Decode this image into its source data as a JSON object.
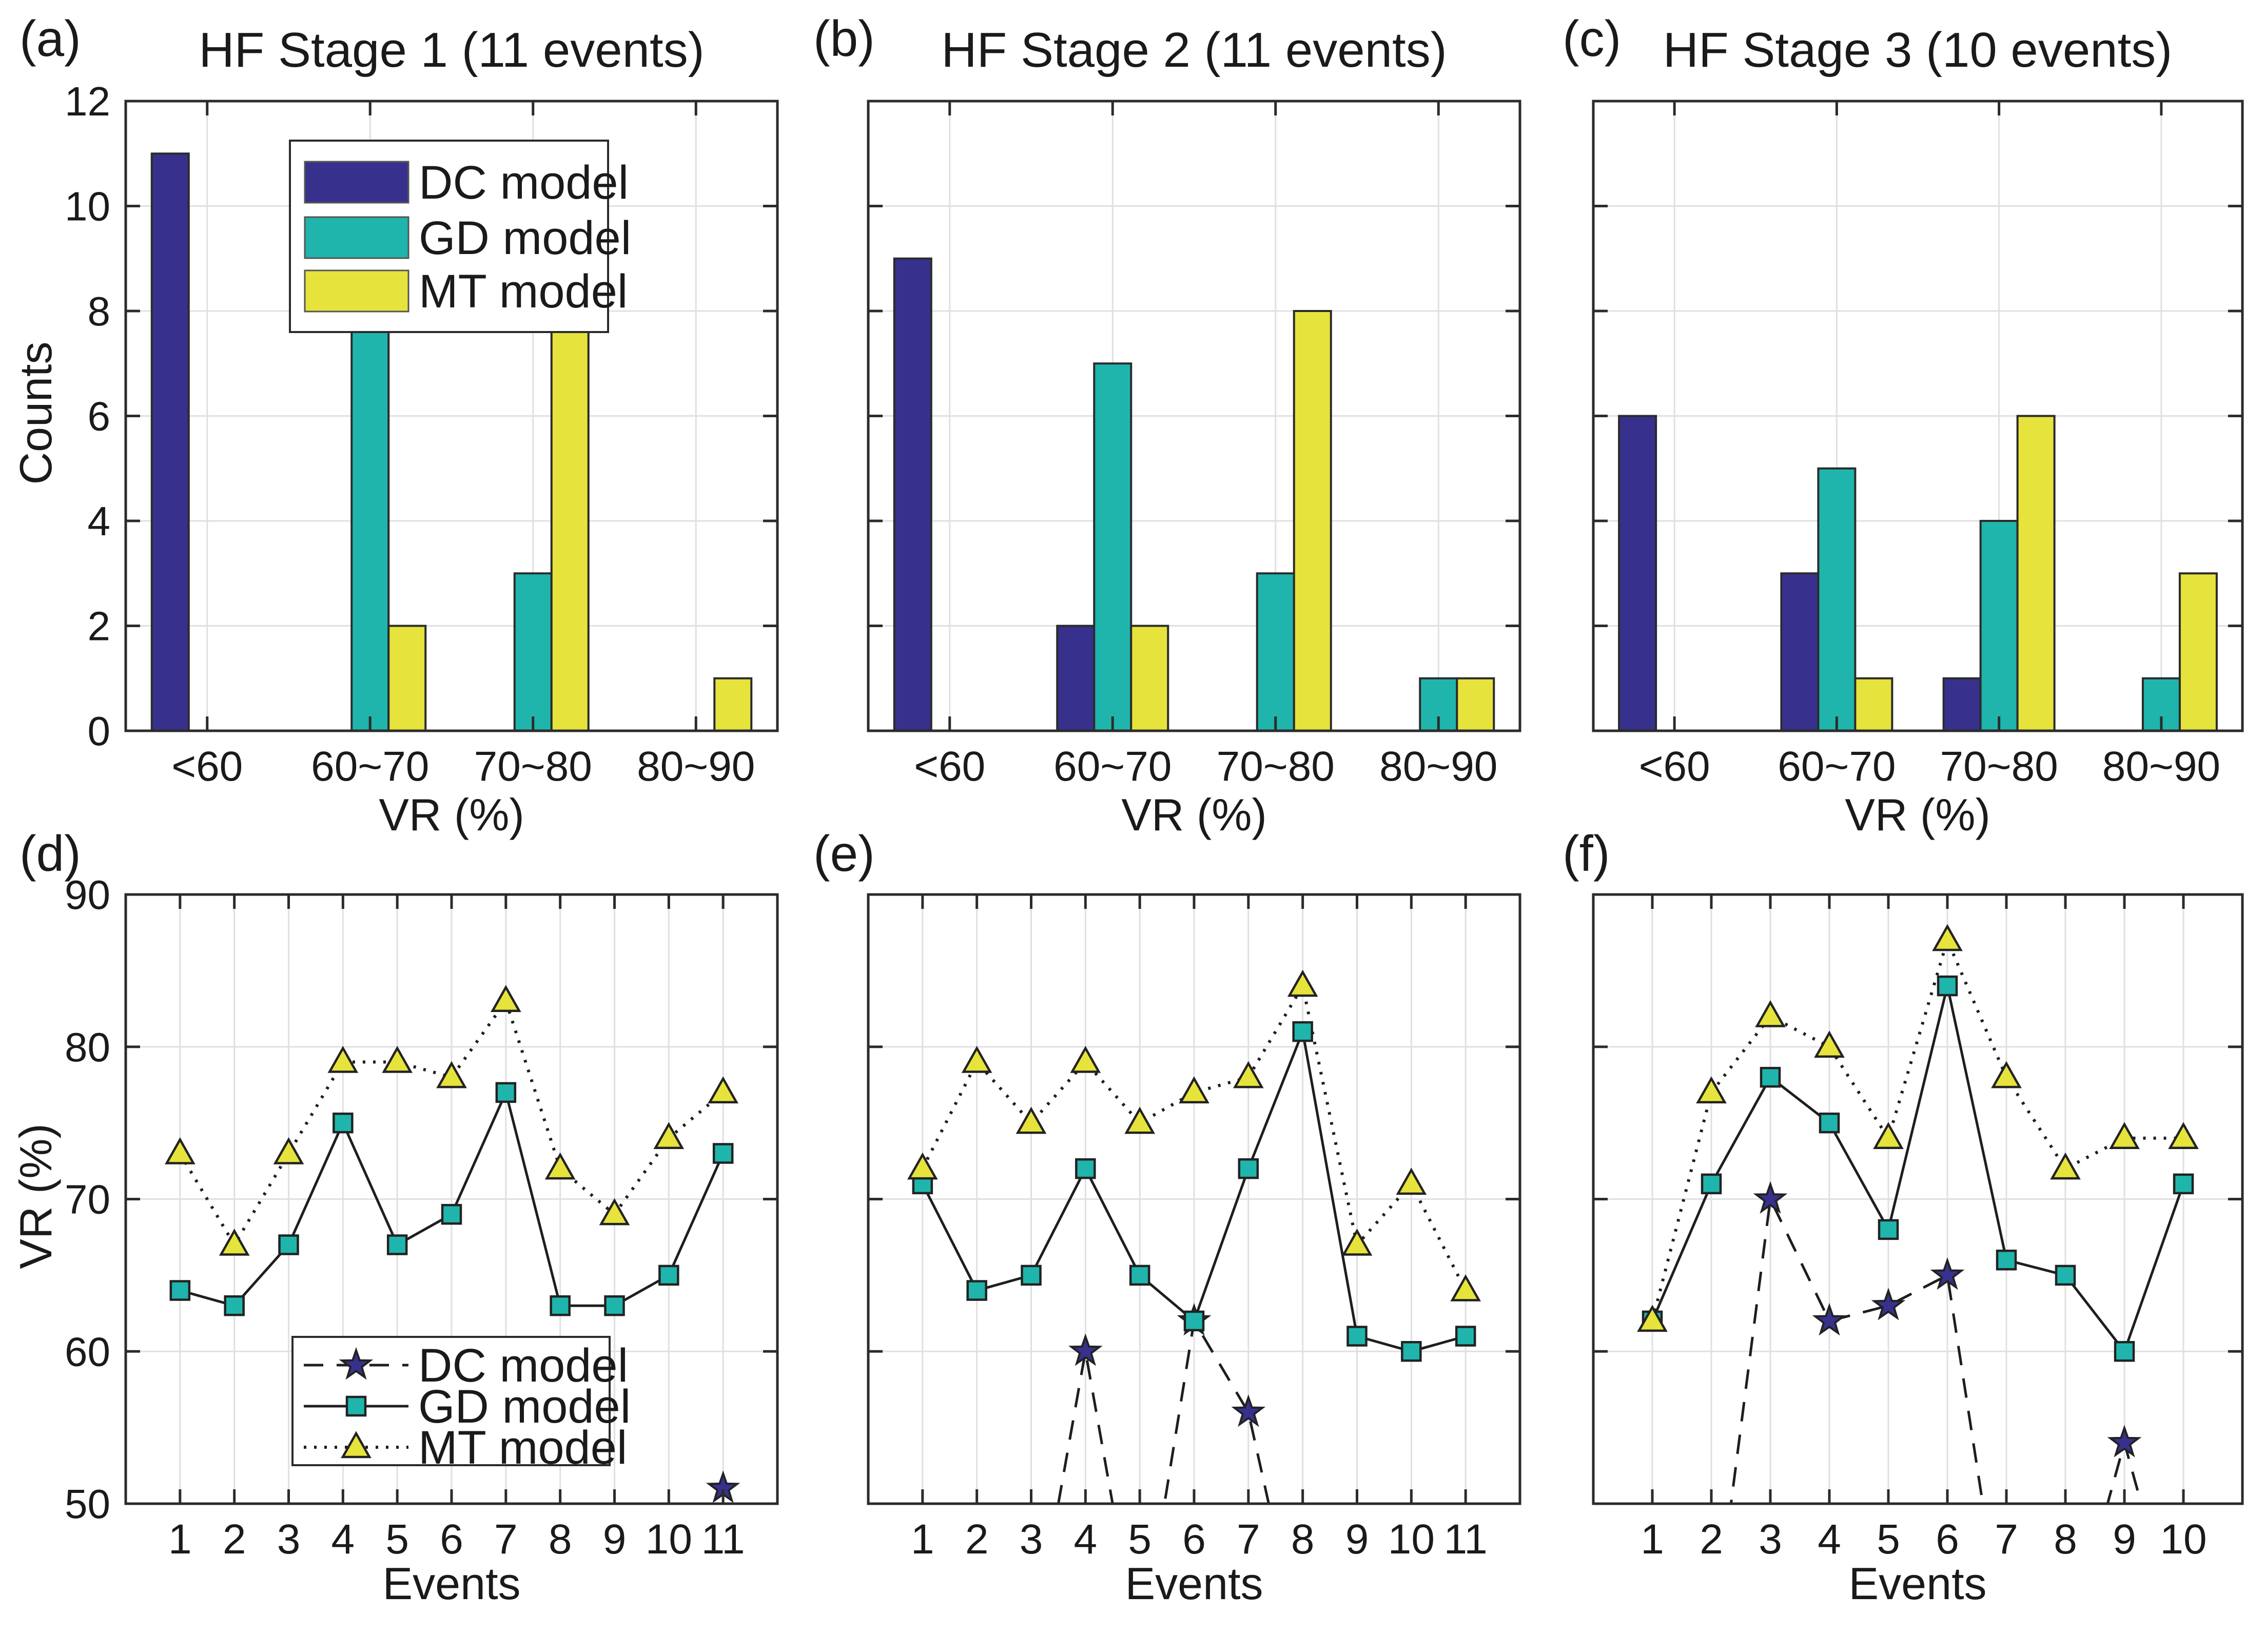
{
  "page": {
    "background": "#ffffff"
  },
  "style": {
    "frame_color": "#2b2b2b",
    "grid_color": "#e0e0e0",
    "series_line_color": "#1e1e1e",
    "text_color": "#1a1a1a",
    "dc_color": "#37318D",
    "gd_color": "#1FB5AC",
    "mt_color": "#E6E33C"
  },
  "chart_data": [
    {
      "type": "bar",
      "tag": "(a)",
      "title": "HF Stage 1 (11 events)",
      "xlabel": "VR (%)",
      "ylabel": "Counts",
      "categories": [
        "<60",
        "60~70",
        "70~80",
        "80~90"
      ],
      "series": [
        {
          "name": "DC model",
          "color": "#37318D",
          "values": [
            11,
            0,
            0,
            0
          ]
        },
        {
          "name": "GD model",
          "color": "#1FB5AC",
          "values": [
            0,
            8,
            3,
            0
          ]
        },
        {
          "name": "MT model",
          "color": "#E6E33C",
          "values": [
            0,
            2,
            8,
            1
          ]
        }
      ],
      "ylim": [
        0,
        12
      ],
      "yticks": [
        0,
        2,
        4,
        6,
        8,
        10,
        12
      ],
      "show_ytick_labels": true,
      "legend": "top",
      "grid": true
    },
    {
      "type": "bar",
      "tag": "(b)",
      "title": "HF Stage 2 (11 events)",
      "xlabel": "VR (%)",
      "ylabel": "",
      "categories": [
        "<60",
        "60~70",
        "70~80",
        "80~90"
      ],
      "series": [
        {
          "name": "DC model",
          "color": "#37318D",
          "values": [
            9,
            2,
            0,
            0
          ]
        },
        {
          "name": "GD model",
          "color": "#1FB5AC",
          "values": [
            0,
            7,
            3,
            1
          ]
        },
        {
          "name": "MT model",
          "color": "#E6E33C",
          "values": [
            0,
            2,
            8,
            1
          ]
        }
      ],
      "ylim": [
        0,
        12
      ],
      "yticks": [
        0,
        2,
        4,
        6,
        8,
        10,
        12
      ],
      "show_ytick_labels": false,
      "legend": "none",
      "grid": true
    },
    {
      "type": "bar",
      "tag": "(c)",
      "title": "HF Stage 3 (10 events)",
      "xlabel": "VR (%)",
      "ylabel": "",
      "categories": [
        "<60",
        "60~70",
        "70~80",
        "80~90"
      ],
      "series": [
        {
          "name": "DC model",
          "color": "#37318D",
          "values": [
            6,
            3,
            1,
            0
          ]
        },
        {
          "name": "GD model",
          "color": "#1FB5AC",
          "values": [
            0,
            5,
            4,
            1
          ]
        },
        {
          "name": "MT model",
          "color": "#E6E33C",
          "values": [
            0,
            1,
            6,
            3
          ]
        }
      ],
      "ylim": [
        0,
        12
      ],
      "yticks": [
        0,
        2,
        4,
        6,
        8,
        10,
        12
      ],
      "show_ytick_labels": false,
      "legend": "none",
      "grid": true
    },
    {
      "type": "line",
      "tag": "(d)",
      "title": "",
      "xlabel": "Events",
      "ylabel": "VR (%)",
      "x": [
        1,
        2,
        3,
        4,
        5,
        6,
        7,
        8,
        9,
        10,
        11
      ],
      "xlim": [
        0,
        12
      ],
      "series": [
        {
          "name": "DC model",
          "color": "#37318D",
          "marker": "star",
          "line": "dashed",
          "values": [
            null,
            null,
            null,
            null,
            null,
            null,
            null,
            null,
            null,
            null,
            51
          ]
        },
        {
          "name": "GD model",
          "color": "#1FB5AC",
          "marker": "square",
          "line": "solid",
          "values": [
            64,
            63,
            67,
            75,
            67,
            69,
            77,
            63,
            63,
            65,
            73
          ]
        },
        {
          "name": "MT model",
          "color": "#E6E33C",
          "marker": "triangle",
          "line": "dotted",
          "values": [
            73,
            67,
            73,
            79,
            79,
            78,
            83,
            72,
            69,
            74,
            77
          ]
        }
      ],
      "ylim": [
        50,
        90
      ],
      "yticks": [
        50,
        60,
        70,
        80,
        90
      ],
      "show_ytick_labels": true,
      "legend": "bottom",
      "grid": true,
      "offscreen_note": "null = value below 50; dashed line dips beneath the axis"
    },
    {
      "type": "line",
      "tag": "(e)",
      "title": "",
      "xlabel": "Events",
      "ylabel": "",
      "x": [
        1,
        2,
        3,
        4,
        5,
        6,
        7,
        8,
        9,
        10,
        11
      ],
      "xlim": [
        0,
        12
      ],
      "series": [
        {
          "name": "DC model",
          "color": "#37318D",
          "marker": "star",
          "line": "dashed",
          "values": [
            null,
            null,
            null,
            60,
            null,
            62,
            56,
            null,
            null,
            null,
            null
          ]
        },
        {
          "name": "GD model",
          "color": "#1FB5AC",
          "marker": "square",
          "line": "solid",
          "values": [
            71,
            64,
            65,
            72,
            65,
            62,
            72,
            81,
            61,
            60,
            61
          ]
        },
        {
          "name": "MT model",
          "color": "#E6E33C",
          "marker": "triangle",
          "line": "dotted",
          "values": [
            72,
            79,
            75,
            79,
            75,
            77,
            78,
            84,
            67,
            71,
            64
          ]
        }
      ],
      "ylim": [
        50,
        90
      ],
      "yticks": [
        50,
        60,
        70,
        80,
        90
      ],
      "show_ytick_labels": false,
      "legend": "none",
      "grid": true,
      "offscreen_note": "null = value below 50; dashed line dips beneath the axis"
    },
    {
      "type": "line",
      "tag": "(f)",
      "title": "",
      "xlabel": "Events",
      "ylabel": "",
      "x": [
        1,
        2,
        3,
        4,
        5,
        6,
        7,
        8,
        9,
        10
      ],
      "xlim": [
        0,
        11
      ],
      "series": [
        {
          "name": "DC model",
          "color": "#37318D",
          "marker": "star",
          "line": "dashed",
          "values": [
            null,
            null,
            70,
            62,
            63,
            65,
            null,
            null,
            54,
            null
          ]
        },
        {
          "name": "GD model",
          "color": "#1FB5AC",
          "marker": "square",
          "line": "solid",
          "values": [
            62,
            71,
            78,
            75,
            68,
            84,
            66,
            65,
            60,
            71
          ]
        },
        {
          "name": "MT model",
          "color": "#E6E33C",
          "marker": "triangle",
          "line": "dotted",
          "values": [
            62,
            77,
            82,
            80,
            74,
            87,
            78,
            72,
            74,
            74
          ]
        }
      ],
      "ylim": [
        50,
        90
      ],
      "yticks": [
        50,
        60,
        70,
        80,
        90
      ],
      "show_ytick_labels": false,
      "legend": "none",
      "grid": true,
      "offscreen_note": "null = value below 50; dashed line dips beneath the axis"
    }
  ]
}
